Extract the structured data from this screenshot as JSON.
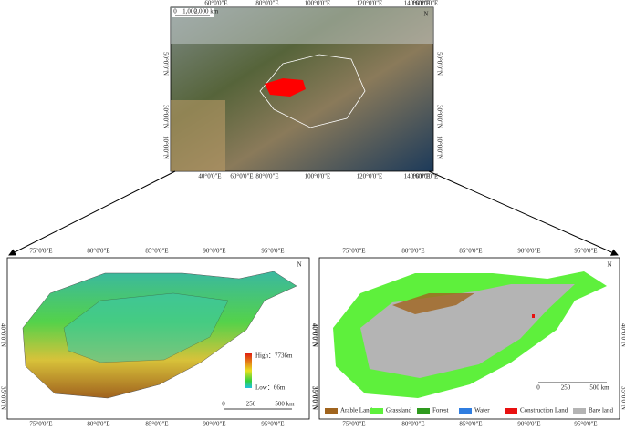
{
  "overview_map": {
    "scale_bar": [
      "0",
      "1,000",
      "2,000 km"
    ],
    "north": "N",
    "top_lon": [
      "60°0'0\"E",
      "80°0'0\"E",
      "100°0'0\"E",
      "120°0'0\"E",
      "140°0'0\"E",
      "160°0'0\"E"
    ],
    "bottom_lon": [
      "40°0'0\"E",
      "60°0'0\"E",
      "80°0'0\"E",
      "100°0'0\"E",
      "120°0'0\"E",
      "140°0'0\"E",
      "160°0'0\"E"
    ],
    "left_lat": [
      "50°0'0\"N",
      "30°0'0\"N",
      "10°0'0\"N"
    ],
    "right_lat": [
      "50°0'0\"N",
      "30°0'0\"N",
      "10°0'0\"N"
    ]
  },
  "dem_map": {
    "north": "N",
    "top_lon": [
      "75°0'0\"E",
      "80°0'0\"E",
      "85°0'0\"E",
      "90°0'0\"E",
      "95°0'0\"E"
    ],
    "bottom_lon": [
      "75°0'0\"E",
      "80°0'0\"E",
      "85°0'0\"E",
      "90°0'0\"E",
      "95°0'0\"E"
    ],
    "left_lat": [
      "40°0'0\"N",
      "35°0'0\"N"
    ],
    "right_lat": [
      "40°0'0\"N",
      "35°0'0\"N"
    ],
    "legend_high": "High：7736m",
    "legend_low": "Low：66m",
    "scale_bar": [
      "0",
      "250",
      "500 km"
    ]
  },
  "landuse_map": {
    "north": "N",
    "top_lon": [
      "75°0'0\"E",
      "80°0'0\"E",
      "85°0'0\"E",
      "90°0'0\"E",
      "95°0'0\"E"
    ],
    "bottom_lon": [
      "75°0'0\"E",
      "80°0'0\"E",
      "85°0'0\"E",
      "90°0'0\"E",
      "95°0'0\"E"
    ],
    "left_lat": [
      "40°0'0\"N",
      "35°0'0\"N"
    ],
    "right_lat": [
      "40°0'0\"N",
      "35°0'0\"N"
    ],
    "scale_bar": [
      "0",
      "250",
      "500 km"
    ],
    "legend": [
      {
        "label": "Arable Land",
        "color": "#a0641e"
      },
      {
        "label": "Grassland",
        "color": "#5ef03c"
      },
      {
        "label": "Forest",
        "color": "#2e9a1e"
      },
      {
        "label": "Water",
        "color": "#2f7de0"
      },
      {
        "label": "Construction Land",
        "color": "#e81010"
      },
      {
        "label": "Bare land",
        "color": "#b4b4b4"
      }
    ]
  }
}
